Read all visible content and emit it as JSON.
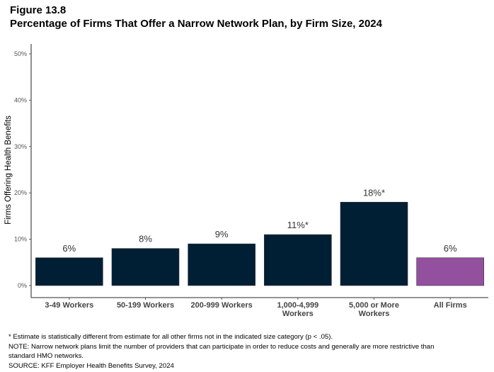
{
  "figure_label": "Figure 13.8",
  "title": "Percentage of Firms That Offer a Narrow Network Plan, by Firm Size, 2024",
  "chart_data": {
    "type": "bar",
    "title": "Percentage of Firms That Offer a Narrow Network Plan, by Firm Size, 2024",
    "xlabel": "",
    "ylabel": "Firms Offering Health Benefits",
    "ylim": [
      0,
      50
    ],
    "yticks": [
      0,
      10,
      20,
      30,
      40,
      50
    ],
    "ytick_labels": [
      "0%",
      "10%",
      "20%",
      "30%",
      "40%",
      "50%"
    ],
    "grid": false,
    "categories": [
      [
        "3-49 Workers"
      ],
      [
        "50-199 Workers"
      ],
      [
        "200-999 Workers"
      ],
      [
        "1,000-4,999",
        "Workers"
      ],
      [
        "5,000 or More",
        "Workers"
      ],
      [
        "All Firms"
      ]
    ],
    "values": [
      6,
      8,
      9,
      11,
      18,
      6
    ],
    "data_labels": [
      "6%",
      "8%",
      "9%",
      "11%*",
      "18%*",
      "6%"
    ],
    "colors": [
      "#001f35",
      "#001f35",
      "#001f35",
      "#001f35",
      "#001f35",
      "#93509f"
    ]
  },
  "notes": [
    "* Estimate is statistically different from estimate for all other firms not in the indicated size category (p < .05).",
    "NOTE: Narrow network plans limit the number of providers that can participate in order to reduce costs and generally are more restrictive than",
    "standard HMO networks.",
    "SOURCE: KFF Employer Health Benefits Survey, 2024"
  ]
}
